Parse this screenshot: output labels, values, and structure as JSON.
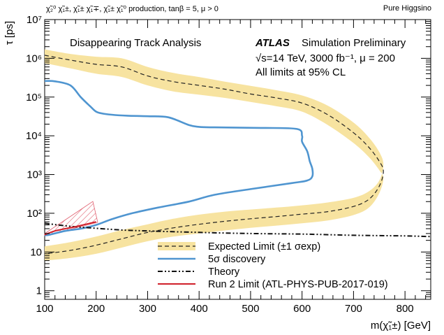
{
  "header": {
    "left": "χ̃₂⁰ χ̃₁±, χ̃₁± χ̃₁∓, χ̃₁± χ̃₁⁰ production, tanβ = 5, μ > 0",
    "right": "Pure Higgsino"
  },
  "annotations": {
    "analysis": "Disappearing Track Analysis",
    "atlas": "ATLAS",
    "atlas_rest": "Simulation Preliminary",
    "energy": "√s=14 TeV, 3000 fb⁻¹, μ = 200",
    "cl": "All limits at 95% CL"
  },
  "colors": {
    "band": "#f7e3a0",
    "expected": "#222222",
    "discovery": "#4f95d0",
    "theory": "#111111",
    "run2": "#d0202a",
    "hatch": "#e06070"
  },
  "chart_data": {
    "type": "line",
    "xlabel": "m(χ̃₁±) [GeV]",
    "ylabel": "τ [ps]",
    "xlim": [
      100,
      850
    ],
    "ylim": [
      0.6,
      10000000
    ],
    "yscale": "log",
    "x_ticks": [
      100,
      200,
      300,
      400,
      500,
      600,
      700,
      800
    ],
    "y_ticks": [
      {
        "value": 1,
        "label": "1"
      },
      {
        "value": 10,
        "label": "10"
      },
      {
        "value": 100,
        "label": "10²"
      },
      {
        "value": 1000,
        "label": "10³"
      },
      {
        "value": 10000,
        "label": "10⁴"
      },
      {
        "value": 100000,
        "label": "10⁵"
      },
      {
        "value": 1000000,
        "label": "10⁶"
      },
      {
        "value": 10000000,
        "label": "10⁷"
      }
    ],
    "legend": [
      {
        "label": "Expected Limit (±1 σexp)",
        "style": "band"
      },
      {
        "label": "5σ discovery",
        "style": "discovery"
      },
      {
        "label": "Theory",
        "style": "theory"
      },
      {
        "label": "Run 2 Limit (ATL-PHYS-PUB-2017-019)",
        "style": "run2"
      }
    ],
    "series": [
      {
        "name": "Expected Limit (±1 σexp)",
        "x": [
          100,
          150,
          200,
          250,
          300,
          350,
          400,
          450,
          500,
          550,
          600,
          650,
          700,
          730,
          750,
          758,
          750,
          730,
          700,
          650,
          600,
          550,
          500,
          450,
          400,
          350,
          300,
          250,
          200,
          150,
          100
        ],
        "y": [
          1200000,
          900000,
          700000,
          600000,
          350000,
          250000,
          200000,
          160000,
          120000,
          95000,
          70000,
          35000,
          12000,
          5000,
          2200,
          1200,
          500,
          230,
          150,
          110,
          95,
          82,
          72,
          62,
          52,
          42,
          32,
          22,
          15,
          11,
          9
        ],
        "band_upper": [
          1700000,
          1300000,
          1100000,
          1000000,
          600000,
          420000,
          330000,
          250000,
          195000,
          150000,
          110000,
          60000,
          22000,
          9000,
          3800,
          1800,
          700,
          370,
          250,
          190,
          160,
          140,
          125,
          110,
          92,
          72,
          52,
          37,
          25,
          18,
          14
        ],
        "band_lower": [
          750000,
          550000,
          400000,
          330000,
          200000,
          140000,
          115000,
          95000,
          75000,
          58000,
          42000,
          19000,
          6500,
          2800,
          1300,
          800,
          330,
          140,
          90,
          65,
          55,
          48,
          42,
          36,
          30,
          25,
          19,
          13,
          9,
          7,
          6
        ]
      },
      {
        "name": "5σ discovery",
        "x": [
          100,
          120,
          150,
          170,
          190,
          200,
          210,
          230,
          260,
          300,
          340,
          380,
          400,
          430,
          520,
          590,
          600,
          600,
          610,
          615,
          620,
          620,
          610,
          580,
          500,
          430,
          380,
          320,
          270,
          230,
          200,
          170,
          140,
          110,
          100
        ],
        "y": [
          260000,
          255000,
          200000,
          100000,
          55000,
          42000,
          38000,
          35000,
          33000,
          32000,
          30000,
          19000,
          17000,
          16500,
          16000,
          15000,
          10000,
          7000,
          4000,
          2200,
          1400,
          900,
          700,
          600,
          420,
          300,
          200,
          140,
          100,
          70,
          50,
          40,
          35,
          28,
          27
        ]
      },
      {
        "name": "Theory",
        "x": [
          100,
          150,
          200,
          250,
          300,
          400,
          500,
          600,
          700,
          800,
          850
        ],
        "y": [
          55,
          46,
          41,
          37,
          35,
          32,
          30,
          29,
          27,
          26,
          25
        ]
      },
      {
        "name": "Run 2 Limit (ATL-PHYS-PUB-2017-019)",
        "x": [
          100,
          120,
          140,
          160,
          180,
          200
        ],
        "y": [
          28,
          35,
          40,
          45,
          52,
          60
        ]
      }
    ]
  }
}
